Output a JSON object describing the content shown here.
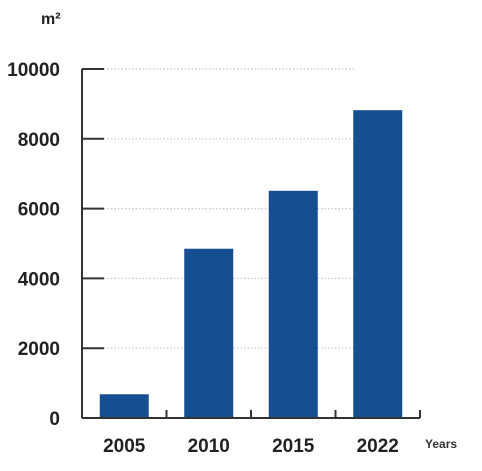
{
  "chart_data": {
    "type": "bar",
    "categories": [
      "2005",
      "2010",
      "2015",
      "2022"
    ],
    "values": [
      680,
      4850,
      6510,
      8820
    ],
    "title": "",
    "xlabel": "Years",
    "ylabel": "m²",
    "ylim": [
      0,
      10000
    ],
    "yticks": [
      0,
      2000,
      4000,
      6000,
      8000,
      10000
    ],
    "grid": "dotted horizontal",
    "legend": "none",
    "colors": {
      "bar": "#154f92",
      "axis": "#333333",
      "grid": "#c8c8c8",
      "text": "#222222"
    }
  }
}
